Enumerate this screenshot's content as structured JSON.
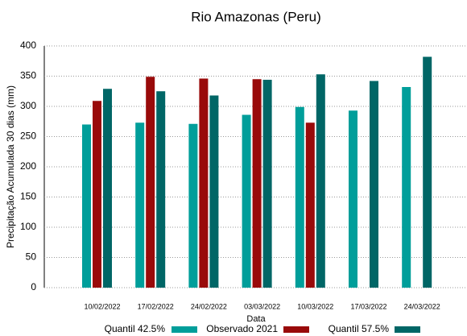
{
  "chart_data": {
    "type": "bar",
    "title": "Rio Amazonas (Peru)",
    "x_label": "Data",
    "y_label": "Precipitação Acumulada 30 dias (mm)",
    "categories": [
      "10/02/2022",
      "17/02/2022",
      "24/02/2022",
      "03/03/2022",
      "10/03/2022",
      "17/03/2022",
      "24/03/2022"
    ],
    "series": [
      {
        "name": "Quantil 42.5%",
        "color": "#009e9a",
        "values": [
          270,
          273,
          271,
          286,
          299,
          293,
          332
        ]
      },
      {
        "name": "Observado 2021",
        "color": "#990a0a",
        "values": [
          309,
          349,
          346,
          345,
          273,
          null,
          null
        ]
      },
      {
        "name": "Quantil 57.5%",
        "color": "#006666",
        "values": [
          329,
          325,
          318,
          344,
          353,
          342,
          382
        ]
      }
    ],
    "ylim": [
      0,
      400
    ],
    "yticks": [
      0,
      50,
      100,
      150,
      200,
      250,
      300,
      350,
      400
    ],
    "grid": true
  }
}
